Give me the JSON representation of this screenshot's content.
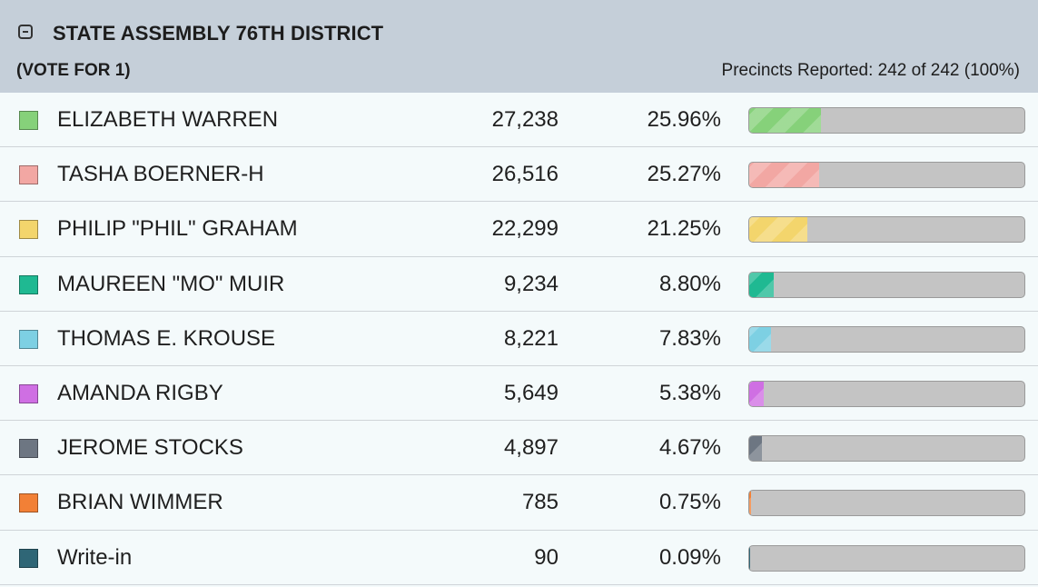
{
  "contest": {
    "title": "STATE ASSEMBLY 76TH DISTRICT",
    "vote_for": "(VOTE FOR 1)",
    "precincts_reported": "Precincts Reported: 242 of 242 (100%)",
    "collapse_icon": "minus-square-icon"
  },
  "candidates": [
    {
      "name": "ELIZABETH WARREN",
      "votes": "27,238",
      "percent": "25.96%",
      "share": 25.96,
      "color": "#86d17a"
    },
    {
      "name": "TASHA BOERNER-H",
      "votes": "26,516",
      "percent": "25.27%",
      "share": 25.27,
      "color": "#f2a7a3"
    },
    {
      "name": "PHILIP \"PHIL\" GRAHAM",
      "votes": "22,299",
      "percent": "21.25%",
      "share": 21.25,
      "color": "#f3d56c"
    },
    {
      "name": "MAUREEN \"MO\" MUIR",
      "votes": "9,234",
      "percent": "8.80%",
      "share": 8.8,
      "color": "#1fb992"
    },
    {
      "name": "THOMAS E. KROUSE",
      "votes": "8,221",
      "percent": "7.83%",
      "share": 7.83,
      "color": "#7dd0e3"
    },
    {
      "name": "AMANDA RIGBY",
      "votes": "5,649",
      "percent": "5.38%",
      "share": 5.38,
      "color": "#cf6fe3"
    },
    {
      "name": "JEROME STOCKS",
      "votes": "4,897",
      "percent": "4.67%",
      "share": 4.67,
      "color": "#6d7682"
    },
    {
      "name": "BRIAN WIMMER",
      "votes": "785",
      "percent": "0.75%",
      "share": 0.75,
      "color": "#f28036"
    },
    {
      "name": "Write-in",
      "votes": "90",
      "percent": "0.09%",
      "share": 0.09,
      "color": "#2f6676"
    }
  ]
}
